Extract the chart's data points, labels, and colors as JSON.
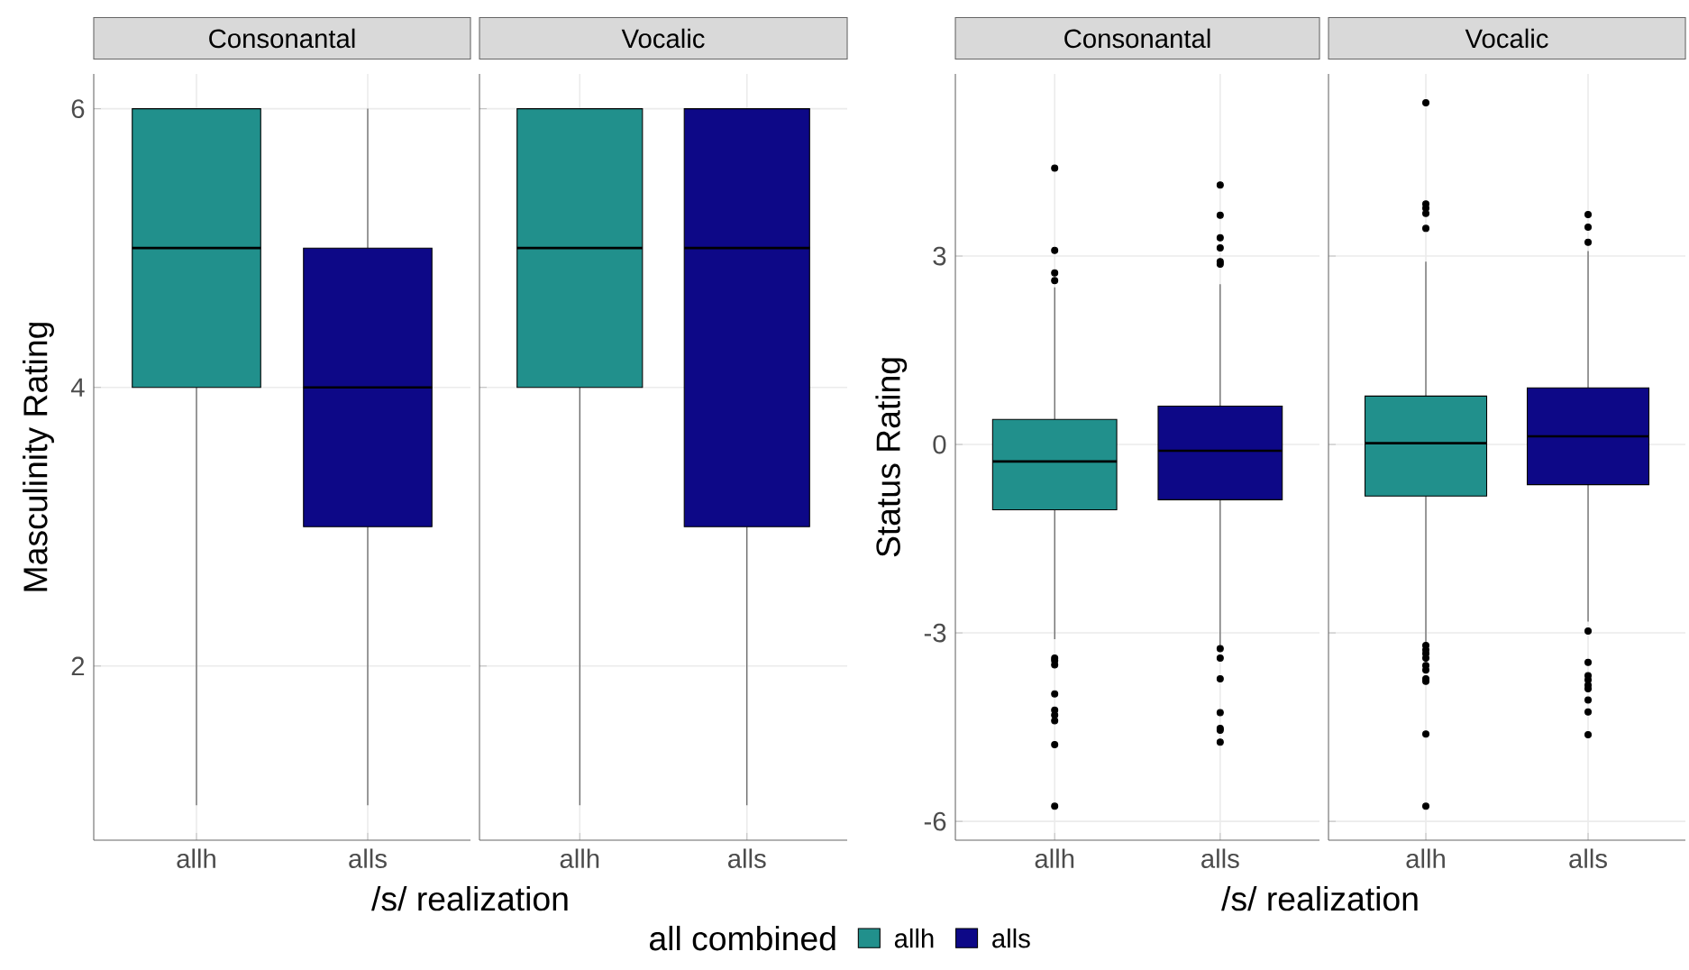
{
  "chart_data": [
    {
      "type": "box",
      "title": "Consonantal",
      "ylabel": "Masculinity Rating",
      "xlabel": "/s/ realization",
      "legend_title": "all  combined",
      "legend": "bottom",
      "grid": true,
      "categories": [
        "allh",
        "alls"
      ],
      "ylim": [
        0.75,
        6.25
      ],
      "yticks": [
        2,
        4,
        6
      ],
      "series": [
        {
          "name": "allh",
          "color": "#21908c",
          "boxes": [
            {
              "low": 1,
              "q1": 4,
              "median": 5,
              "q3": 6,
              "high": 6
            },
            null
          ]
        },
        {
          "name": "alls",
          "color": "#0d0887",
          "boxes": [
            null,
            {
              "low": 1,
              "q1": 3,
              "median": 4,
              "q3": 5,
              "high": 6
            }
          ]
        }
      ]
    },
    {
      "type": "box",
      "title": "Vocalic",
      "grid": true,
      "tick_labels": "x",
      "categories": [
        "allh",
        "alls"
      ],
      "ylim": [
        0.75,
        6.25
      ],
      "yticks": [
        2,
        4,
        6
      ],
      "series": [
        {
          "color": "#21908c",
          "boxes": [
            {
              "low": 1,
              "q1": 4,
              "median": 5,
              "q3": 6,
              "high": 6
            },
            null
          ]
        },
        {
          "color": "#0d0887",
          "boxes": [
            null,
            {
              "low": 1,
              "q1": 3,
              "median": 5,
              "q3": 6,
              "high": 6
            }
          ]
        }
      ]
    },
    {
      "type": "box",
      "title": "Consonantal",
      "ylabel": "Status Rating",
      "xlabel": "/s/ realization",
      "grid": true,
      "categories": [
        "allh",
        "alls"
      ],
      "ylim": [
        -6.3,
        5.9
      ],
      "yticks": [
        -6,
        -3,
        0,
        3
      ],
      "series": [
        {
          "color": "#21908c",
          "boxes": [
            {
              "low": -3.1,
              "q1": -1.04,
              "median": -0.27,
              "q3": 0.4,
              "high": 2.5,
              "outliers": [
                4.4,
                3.09,
                2.73,
                2.61,
                -3.4,
                -3.44,
                -3.51,
                -3.97,
                -4.23,
                -4.31,
                -4.4,
                -4.78,
                -5.76
              ]
            },
            null
          ]
        },
        {
          "color": "#0d0887",
          "boxes": [
            null,
            {
              "low": -3.2,
              "q1": -0.88,
              "median": -0.1,
              "q3": 0.61,
              "high": 2.55,
              "outliers": [
                4.13,
                3.65,
                3.29,
                3.13,
                2.91,
                2.87,
                -3.25,
                -3.4,
                -3.73,
                -4.27,
                -4.52,
                -4.55,
                -4.74
              ]
            }
          ]
        }
      ]
    },
    {
      "type": "box",
      "title": "Vocalic",
      "grid": true,
      "tick_labels": "x",
      "categories": [
        "allh",
        "alls"
      ],
      "ylim": [
        -6.3,
        5.9
      ],
      "yticks": [
        -6,
        -3,
        0,
        3
      ],
      "series": [
        {
          "color": "#21908c",
          "boxes": [
            {
              "low": -3.16,
              "q1": -0.82,
              "median": 0.02,
              "q3": 0.77,
              "high": 2.91,
              "outliers": [
                5.44,
                3.83,
                3.76,
                3.68,
                3.44,
                -3.2,
                -3.27,
                -3.33,
                -3.4,
                -3.52,
                -3.59,
                -3.73,
                -3.77,
                -4.61,
                -5.76
              ]
            },
            null
          ]
        },
        {
          "color": "#0d0887",
          "boxes": [
            null,
            {
              "low": -2.82,
              "q1": -0.64,
              "median": 0.13,
              "q3": 0.9,
              "high": 3.08,
              "outliers": [
                3.66,
                3.46,
                3.22,
                -2.97,
                -3.47,
                -3.68,
                -3.75,
                -3.83,
                -3.89,
                -4.07,
                -4.26,
                -4.62
              ]
            }
          ]
        }
      ]
    }
  ]
}
